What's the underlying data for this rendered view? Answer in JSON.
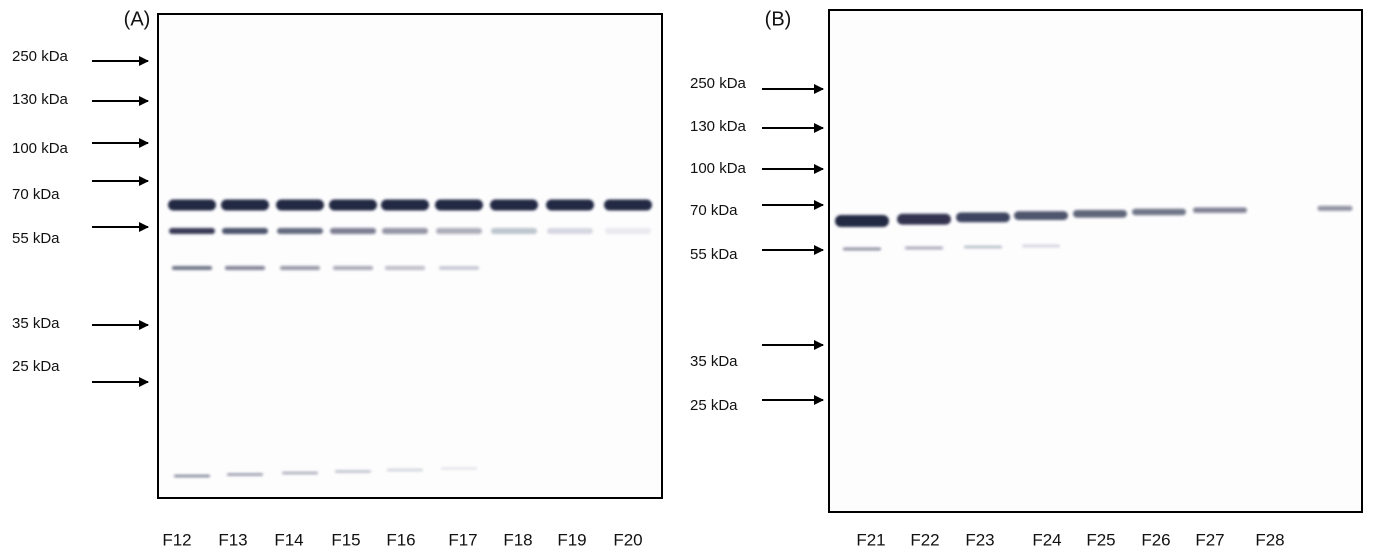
{
  "panels": [
    {
      "label": "(A)",
      "markers": [
        "250 kDa",
        "130 kDa",
        "100 kDa",
        "70 kDa",
        "55 kDa",
        "35 kDa",
        "25 kDa"
      ],
      "lanes": [
        "F12",
        "F13",
        "F14",
        "F15",
        "F16",
        "F17",
        "F18",
        "F19",
        "F20"
      ]
    },
    {
      "label": "(B)",
      "markers": [
        "250 kDa",
        "130 kDa",
        "100 kDa",
        "70 kDa",
        "55 kDa",
        "35 kDa",
        "25 kDa"
      ],
      "lanes": [
        "F21",
        "F22",
        "F23",
        "F24",
        "F25",
        "F26",
        "F27",
        "F28"
      ]
    }
  ]
}
